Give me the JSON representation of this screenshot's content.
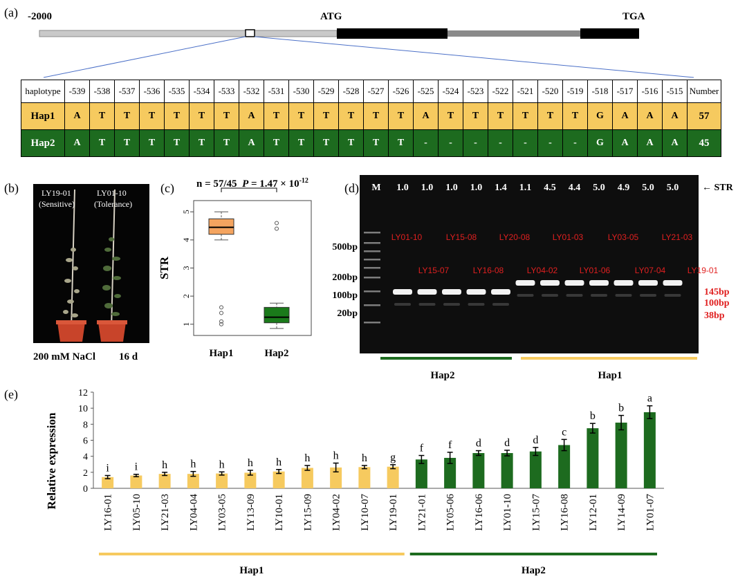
{
  "panel_a": {
    "label": "(a)",
    "left_marker": "-2000",
    "atg": "ATG",
    "tga": "TGA",
    "table": {
      "header_first": "haplotype",
      "positions": [
        "-539",
        "-538",
        "-537",
        "-536",
        "-535",
        "-534",
        "-533",
        "-532",
        "-531",
        "-530",
        "-529",
        "-528",
        "-527",
        "-526",
        "-525",
        "-524",
        "-523",
        "-522",
        "-521",
        "-520",
        "-519",
        "-518",
        "-517",
        "-516",
        "-515"
      ],
      "header_last": "Number",
      "rows": [
        {
          "name": "Hap1",
          "bases": [
            "A",
            "T",
            "T",
            "T",
            "T",
            "T",
            "T",
            "A",
            "T",
            "T",
            "T",
            "T",
            "T",
            "T",
            "A",
            "T",
            "T",
            "T",
            "T",
            "T",
            "T",
            "G",
            "A",
            "A",
            "A"
          ],
          "number": "57"
        },
        {
          "name": "Hap2",
          "bases": [
            "A",
            "T",
            "T",
            "T",
            "T",
            "T",
            "T",
            "A",
            "T",
            "T",
            "T",
            "T",
            "T",
            "T",
            "-",
            "-",
            "-",
            "-",
            "-",
            "-",
            "-",
            "G",
            "A",
            "A",
            "A"
          ],
          "number": "45"
        }
      ]
    }
  },
  "panel_b": {
    "label": "(b)",
    "plant_left": "LY19-01",
    "plant_left_note": "(Sensitive)",
    "plant_right": "LY01-10",
    "plant_right_note": "(Tolerance)",
    "treatment": "200 mM NaCl",
    "duration": "16 d"
  },
  "panel_c": {
    "label": "(c)",
    "stat": "n = 57/45",
    "p_label": "P",
    "p_value": " = 1.47 × 10",
    "p_exp": "-12",
    "ylabel": "STR",
    "yticks": [
      "1",
      "2",
      "3",
      "4",
      "5"
    ],
    "chart_data": {
      "type": "box",
      "categories": [
        "Hap1",
        "Hap2"
      ],
      "ylim": [
        0.6,
        5.4
      ],
      "boxes": [
        {
          "name": "Hap1",
          "whisker_low": 4.0,
          "q1": 4.2,
          "median": 4.45,
          "q3": 4.75,
          "whisker_high": 5.0,
          "outliers": [
            1.6,
            1.4,
            1.1,
            1.0
          ],
          "color": "#f4a460"
        },
        {
          "name": "Hap2",
          "whisker_low": 0.85,
          "q1": 1.05,
          "median": 1.25,
          "q3": 1.6,
          "whisker_high": 1.75,
          "outliers": [
            4.6,
            4.4
          ],
          "color": "#1a7a1a"
        }
      ]
    }
  },
  "panel_d": {
    "label": "(d)",
    "marker_lane": "M",
    "str_values": [
      "1.0",
      "1.0",
      "1.0",
      "1.0",
      "1.4",
      "1.1",
      "4.5",
      "4.4",
      "5.0",
      "4.9",
      "5.0",
      "5.0"
    ],
    "str_label": "STR",
    "ladder": [
      "500bp",
      "200bp",
      "100bp",
      "20bp"
    ],
    "sample_labels_top": [
      "LY01-10",
      "LY15-08",
      "LY20-08",
      "LY01-03",
      "LY03-05",
      "LY21-03"
    ],
    "sample_labels_bottom": [
      "LY15-07",
      "LY16-08",
      "LY04-02",
      "LY01-06",
      "LY07-04",
      "LY19-01"
    ],
    "band_sizes": [
      "145bp",
      "100bp",
      "38bp"
    ],
    "group_left": "Hap2",
    "group_right": "Hap1"
  },
  "panel_e": {
    "label": "(e)",
    "chart_data": {
      "type": "bar",
      "ylabel": "Relative expression",
      "ylim": [
        0,
        12
      ],
      "yticks": [
        "0",
        "2",
        "4",
        "6",
        "8",
        "10",
        "12"
      ],
      "categories": [
        "LY16-01",
        "LY05-10",
        "LY21-03",
        "LY04-04",
        "LY03-05",
        "LY13-09",
        "LY10-01",
        "LY15-09",
        "LY04-02",
        "LY10-07",
        "LY19-01",
        "LY21-01",
        "LY05-06",
        "LY16-06",
        "LY01-10",
        "LY15-07",
        "LY16-08",
        "LY12-01",
        "LY14-09",
        "LY01-07"
      ],
      "values": [
        1.4,
        1.6,
        1.8,
        1.8,
        1.85,
        1.95,
        2.1,
        2.55,
        2.6,
        2.65,
        2.7,
        3.6,
        3.8,
        4.4,
        4.4,
        4.6,
        5.4,
        7.5,
        8.2,
        9.5
      ],
      "errors": [
        0.2,
        0.15,
        0.2,
        0.3,
        0.2,
        0.3,
        0.25,
        0.3,
        0.55,
        0.2,
        0.25,
        0.5,
        0.7,
        0.3,
        0.35,
        0.5,
        0.7,
        0.6,
        0.9,
        0.8
      ],
      "letters": [
        "i",
        "i",
        "h",
        "h",
        "h",
        "h",
        "h",
        "h",
        "h",
        "h",
        "g",
        "f",
        "f",
        "d",
        "d",
        "d",
        "c",
        "b",
        "b",
        "a"
      ],
      "groups": [
        {
          "name": "Hap1",
          "count": 11,
          "color": "#f6ca5f"
        },
        {
          "name": "Hap2",
          "count": 9,
          "color": "#1d6b1f"
        }
      ]
    }
  }
}
